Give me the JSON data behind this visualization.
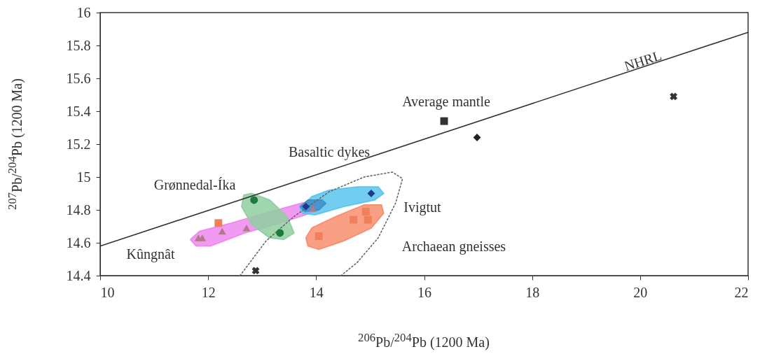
{
  "chart_data": {
    "type": "scatter",
    "xlabel": "$^{206}$Pb/$^{204}$Pb (1200 Ma)",
    "ylabel": "$^{207}$Pb/$^{204}$Pb (1200 Ma)",
    "xlim": [
      10,
      22
    ],
    "xticks": [
      10,
      12,
      14,
      16,
      18,
      20,
      22
    ],
    "ylim": [
      14.4,
      16
    ],
    "yticks": [
      14.4,
      14.6,
      14.8,
      15,
      15.2,
      15.4,
      15.6,
      15.8,
      16
    ],
    "series": [
      {
        "type": "area",
        "color": "#ee88ee",
        "x": [
          11.67,
          11.84,
          12.43,
          13.07,
          13.72,
          14.05,
          14.14,
          13.98,
          13.33,
          12.68,
          12.04,
          11.78,
          11.67
        ],
        "values": [
          14.62,
          14.67,
          14.72,
          14.78,
          14.84,
          14.86,
          14.83,
          14.79,
          14.72,
          14.66,
          14.58,
          14.58,
          14.62
        ]
      },
      {
        "type": "area",
        "color": "#8fcf9f",
        "x": [
          12.81,
          13.14,
          13.46,
          13.59,
          13.4,
          13.14,
          12.81,
          12.62,
          12.66,
          12.81
        ],
        "values": [
          14.9,
          14.86,
          14.76,
          14.66,
          14.62,
          14.63,
          14.71,
          14.82,
          14.89,
          14.9
        ]
      },
      {
        "type": "area",
        "color": "#5bc4ef",
        "x": [
          13.7,
          13.92,
          14.24,
          14.76,
          15.15,
          15.25,
          15.08,
          14.5,
          13.98,
          13.75,
          13.7
        ],
        "values": [
          14.81,
          14.88,
          14.92,
          14.94,
          14.94,
          14.9,
          14.86,
          14.82,
          14.77,
          14.78,
          14.81
        ]
      },
      {
        "type": "area",
        "color": "#f88e6e",
        "x": [
          13.81,
          13.92,
          14.37,
          14.89,
          15.21,
          15.25,
          15.02,
          14.5,
          14.05,
          13.85,
          13.81
        ],
        "values": [
          14.63,
          14.69,
          14.76,
          14.83,
          14.83,
          14.78,
          14.69,
          14.61,
          14.56,
          14.58,
          14.63
        ]
      },
      {
        "type": "area",
        "color": "#3f8fc8",
        "x": [
          13.7,
          13.85,
          14.11,
          14.18,
          14.05,
          13.79,
          13.7
        ],
        "values": [
          14.82,
          14.86,
          14.86,
          14.84,
          14.8,
          14.79,
          14.82
        ]
      },
      {
        "type": "line",
        "color": "#666666",
        "line_style": "dotted",
        "x": [
          12.59,
          13.07,
          13.59,
          14.24,
          14.89,
          15.41,
          15.6,
          15.47,
          15.15,
          14.76,
          14.46
        ],
        "values": [
          14.4,
          14.61,
          14.76,
          14.91,
          15.0,
          15.03,
          14.99,
          14.84,
          14.63,
          14.48,
          14.4
        ]
      },
      {
        "type": "line",
        "color": "#333333",
        "line_style": "solid",
        "x": [
          10,
          22
        ],
        "values": [
          14.58,
          15.88
        ]
      },
      {
        "marker": "triangle",
        "color": "#b07a8a",
        "x": [
          11.82,
          11.89,
          12.26,
          12.71,
          13.94
        ],
        "values": [
          14.63,
          14.63,
          14.67,
          14.69,
          14.81
        ]
      },
      {
        "marker": "circle",
        "color": "#1e7a3c",
        "x": [
          12.85,
          13.33
        ],
        "values": [
          14.86,
          14.66
        ]
      },
      {
        "marker": "diamond",
        "color": "#1f3a8a",
        "x": [
          13.81,
          15.02
        ],
        "values": [
          14.82,
          14.9
        ]
      },
      {
        "marker": "square",
        "color": "#f0805a",
        "x": [
          12.19,
          14.05,
          14.69,
          14.92,
          14.96
        ],
        "values": [
          14.72,
          14.64,
          14.74,
          14.79,
          14.74
        ]
      },
      {
        "marker": "diamond",
        "color": "#222222",
        "x": [
          16.98
        ],
        "values": [
          15.24
        ]
      },
      {
        "marker": "square",
        "color": "#333333",
        "x": [
          16.37
        ],
        "values": [
          15.34
        ]
      },
      {
        "marker": "cross",
        "color": "#333333",
        "x": [
          20.62,
          12.88
        ],
        "values": [
          15.49,
          14.43
        ]
      }
    ],
    "annotations": [
      "NHRL",
      "Average mantle",
      "Basaltic dykes",
      "Grønnedal-Íka",
      "Kûngnât",
      "Ivigtut",
      "Archaean gneisses"
    ]
  }
}
